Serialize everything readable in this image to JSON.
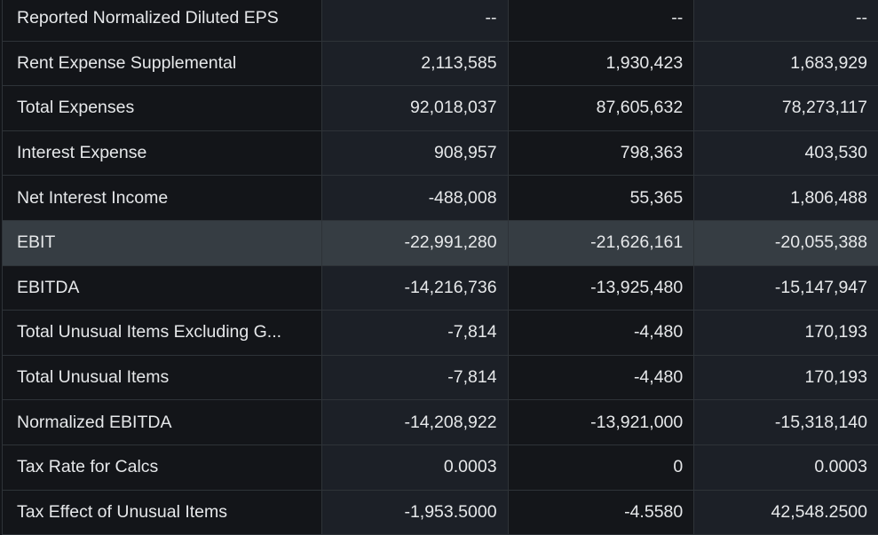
{
  "rows": [
    {
      "label": "Reported Normalized Diluted EPS",
      "values": [
        "--",
        "--",
        "--"
      ]
    },
    {
      "label": "Rent Expense Supplemental",
      "values": [
        "2,113,585",
        "1,930,423",
        "1,683,929"
      ]
    },
    {
      "label": "Total Expenses",
      "values": [
        "92,018,037",
        "87,605,632",
        "78,273,117"
      ]
    },
    {
      "label": "Interest Expense",
      "values": [
        "908,957",
        "798,363",
        "403,530"
      ]
    },
    {
      "label": "Net Interest Income",
      "values": [
        "-488,008",
        "55,365",
        "1,806,488"
      ]
    },
    {
      "label": "EBIT",
      "values": [
        "-22,991,280",
        "-21,626,161",
        "-20,055,388"
      ],
      "highlighted": true
    },
    {
      "label": "EBITDA",
      "values": [
        "-14,216,736",
        "-13,925,480",
        "-15,147,947"
      ]
    },
    {
      "label": "Total Unusual Items Excluding G...",
      "values": [
        "-7,814",
        "-4,480",
        "170,193"
      ]
    },
    {
      "label": "Total Unusual Items",
      "values": [
        "-7,814",
        "-4,480",
        "170,193"
      ]
    },
    {
      "label": "Normalized EBITDA",
      "values": [
        "-14,208,922",
        "-13,921,000",
        "-15,318,140"
      ]
    },
    {
      "label": "Tax Rate for Calcs",
      "values": [
        "0.0003",
        "0",
        "0.0003"
      ]
    },
    {
      "label": "Tax Effect of Unusual Items",
      "values": [
        "-1,953.5000",
        "-4.5580",
        "42,548.2500"
      ]
    }
  ]
}
